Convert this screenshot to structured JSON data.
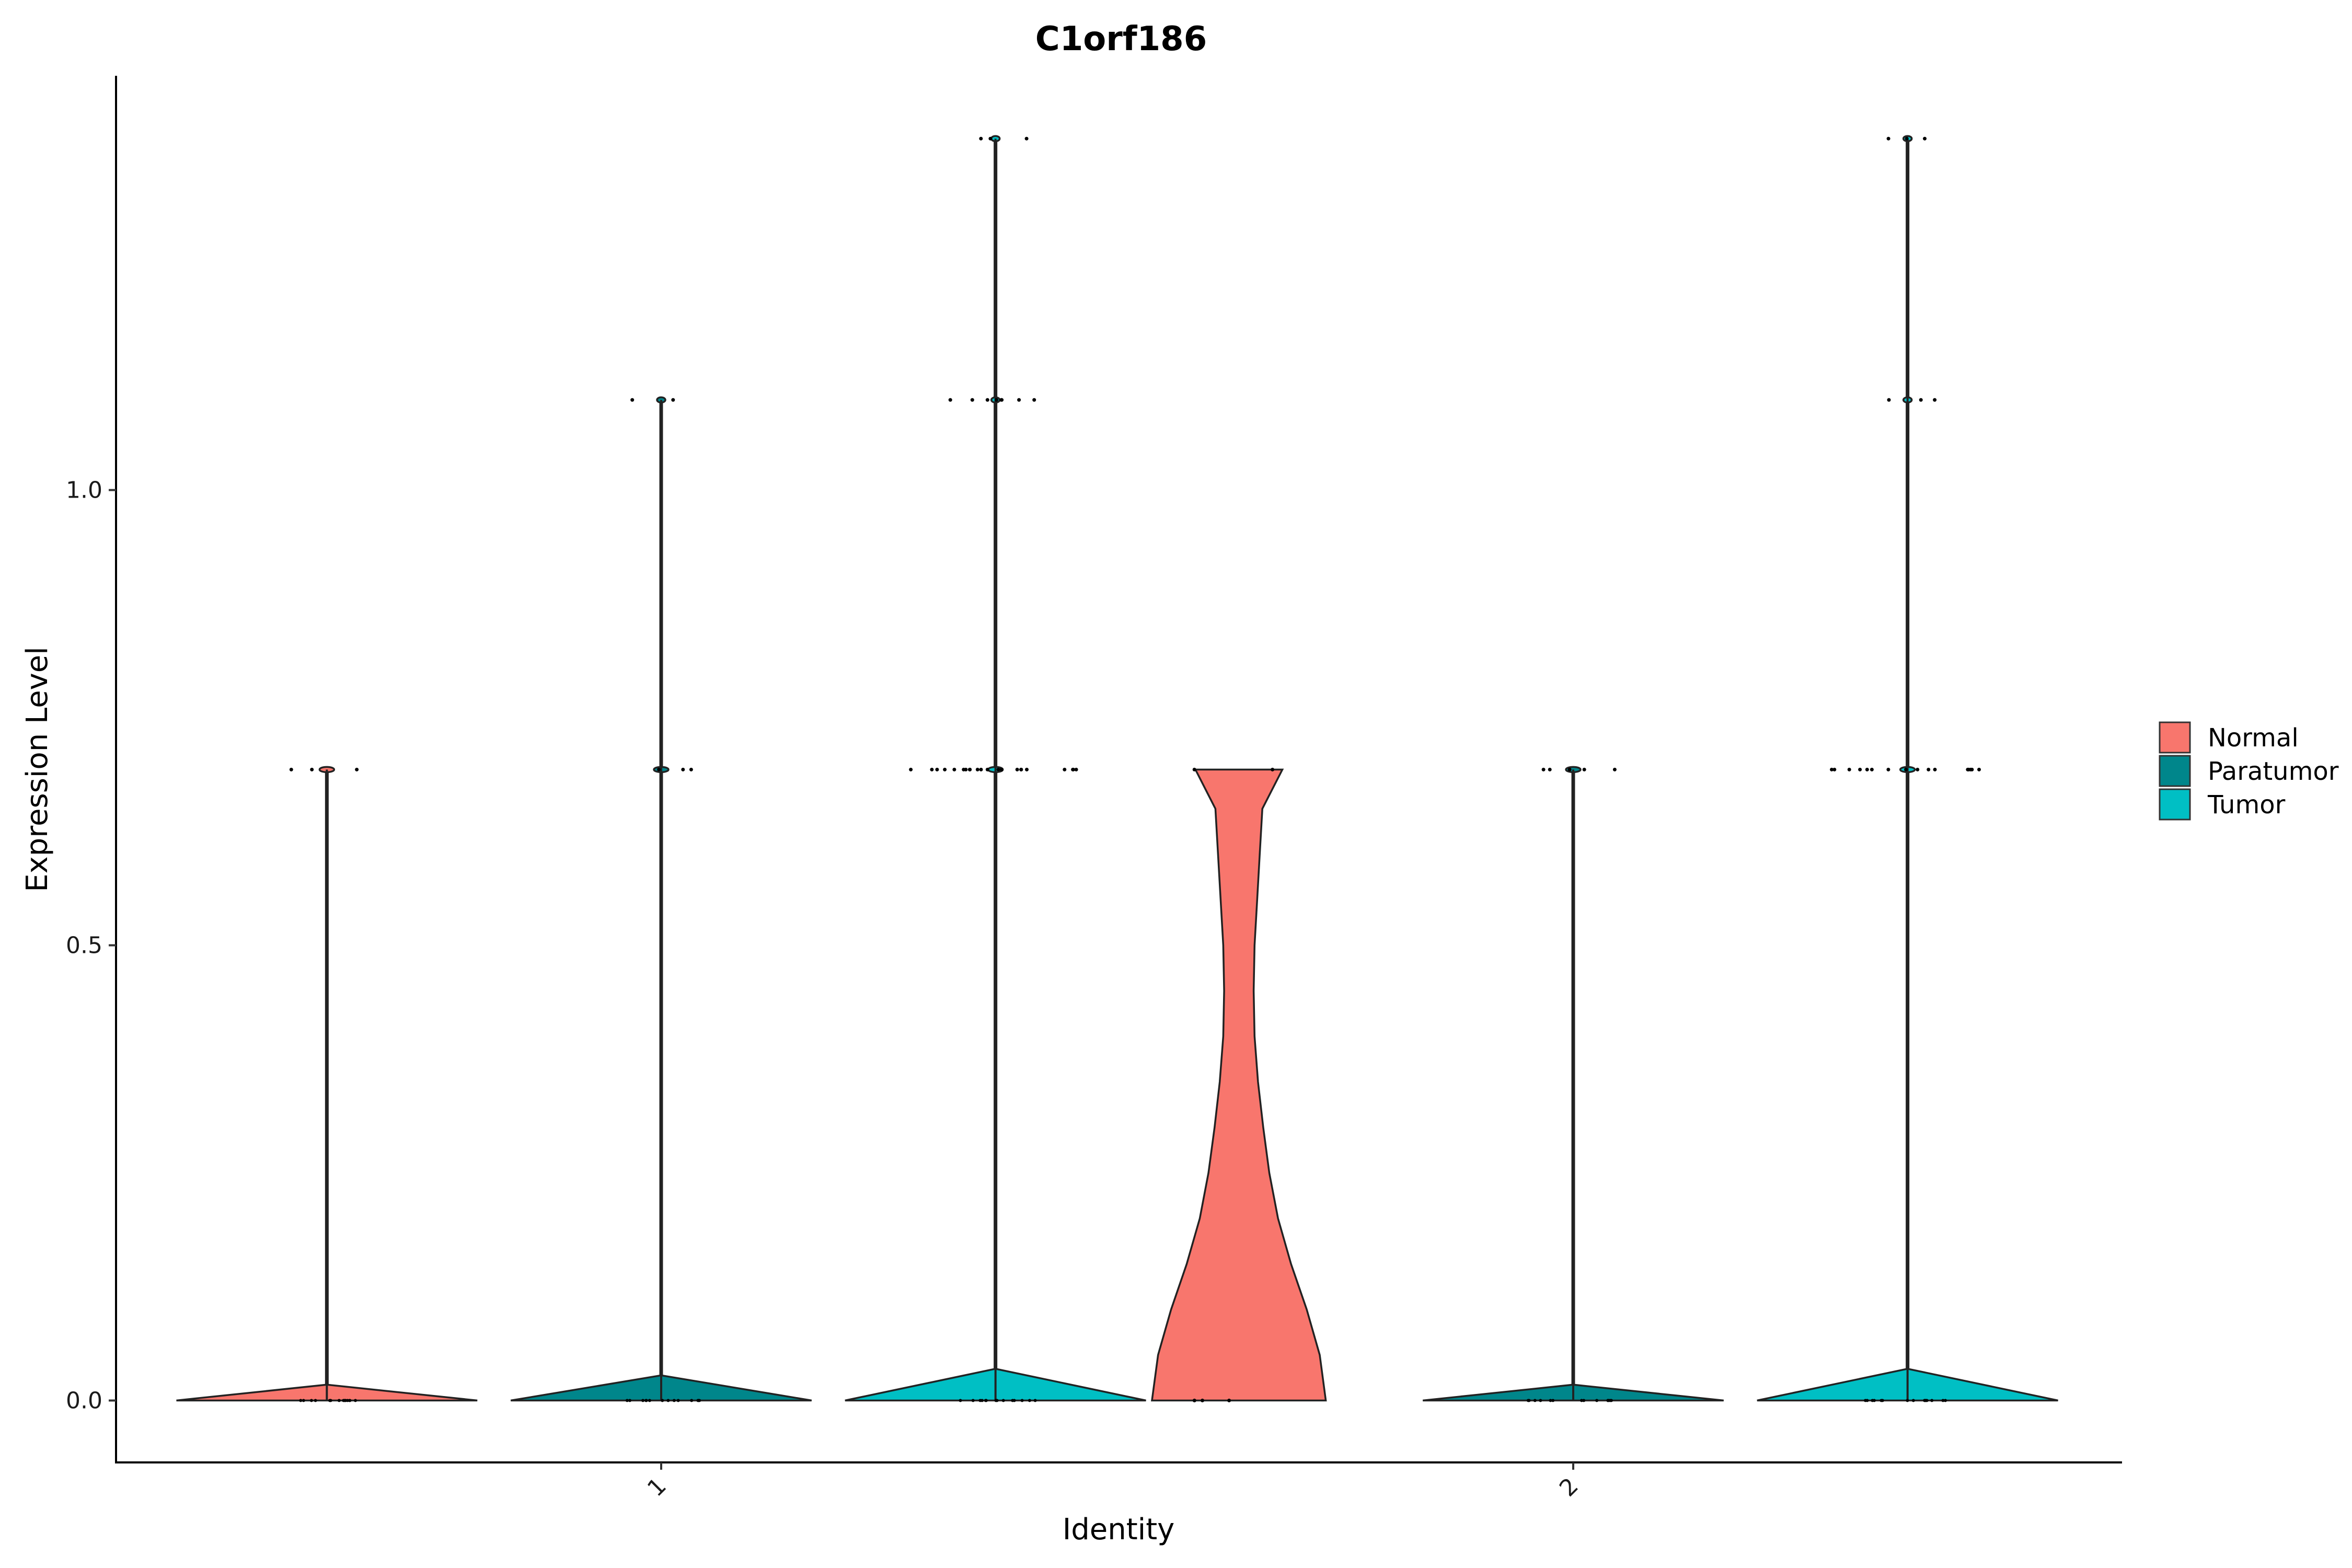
{
  "chart_data": {
    "type": "violin",
    "title": "C1orf186",
    "xlabel": "Identity",
    "ylabel": "Expression Level",
    "categories": [
      "1",
      "2"
    ],
    "ylim": [
      -0.068,
      1.455
    ],
    "y_ticks": [
      0.0,
      0.5,
      1.0
    ],
    "y_tick_labels": [
      "0.0",
      "0.5",
      "1.0"
    ],
    "legend": {
      "placement": "right",
      "entries": [
        {
          "label": "Normal",
          "color": "#F8766D"
        },
        {
          "label": "Paratumor",
          "color": "#00868B"
        },
        {
          "label": "Tumor",
          "color": "#00BFC4"
        }
      ]
    },
    "series": [
      {
        "identity": "1",
        "group": "Normal",
        "color": "#F8766D",
        "min": 0,
        "max": 0.693,
        "mass_at_zero": true,
        "outlier_levels": [
          0.693
        ],
        "jitter": [
          [
            0.693,
            3
          ]
        ]
      },
      {
        "identity": "1",
        "group": "Paratumor",
        "color": "#00868B",
        "min": 0,
        "max": 1.099,
        "mass_at_zero": true,
        "outlier_levels": [
          0.693,
          1.099
        ],
        "jitter": [
          [
            1.099,
            2
          ],
          [
            0.693,
            3
          ]
        ]
      },
      {
        "identity": "1",
        "group": "Tumor",
        "color": "#00BFC4",
        "min": 0,
        "max": 1.386,
        "mass_at_zero": true,
        "outlier_levels": [
          0.693,
          1.099,
          1.386
        ],
        "jitter": [
          [
            1.386,
            3
          ],
          [
            1.099,
            8
          ],
          [
            0.693,
            22
          ]
        ]
      },
      {
        "identity": "2",
        "group": "Normal",
        "color": "#F8766D",
        "min": 0,
        "max": 0.693,
        "mass_at_zero": false,
        "density": [
          [
            0.0,
            1.0
          ],
          [
            0.05,
            0.93
          ],
          [
            0.1,
            0.78
          ],
          [
            0.15,
            0.6
          ],
          [
            0.2,
            0.45
          ],
          [
            0.25,
            0.35
          ],
          [
            0.3,
            0.28
          ],
          [
            0.35,
            0.22
          ],
          [
            0.4,
            0.18
          ],
          [
            0.45,
            0.17
          ],
          [
            0.5,
            0.18
          ],
          [
            0.55,
            0.21
          ],
          [
            0.6,
            0.24
          ],
          [
            0.65,
            0.27
          ],
          [
            0.693,
            0.5
          ]
        ],
        "jitter": [
          [
            0.693,
            2
          ],
          [
            0.0,
            3
          ]
        ]
      },
      {
        "identity": "2",
        "group": "Paratumor",
        "color": "#00868B",
        "min": 0,
        "max": 0.693,
        "mass_at_zero": true,
        "outlier_levels": [
          0.693
        ],
        "jitter": [
          [
            0.693,
            5
          ]
        ]
      },
      {
        "identity": "2",
        "group": "Tumor",
        "color": "#00BFC4",
        "min": 0,
        "max": 1.386,
        "mass_at_zero": true,
        "outlier_levels": [
          0.693,
          1.099,
          1.386
        ],
        "jitter": [
          [
            1.386,
            3
          ],
          [
            1.099,
            3
          ],
          [
            0.693,
            16
          ]
        ]
      }
    ]
  }
}
